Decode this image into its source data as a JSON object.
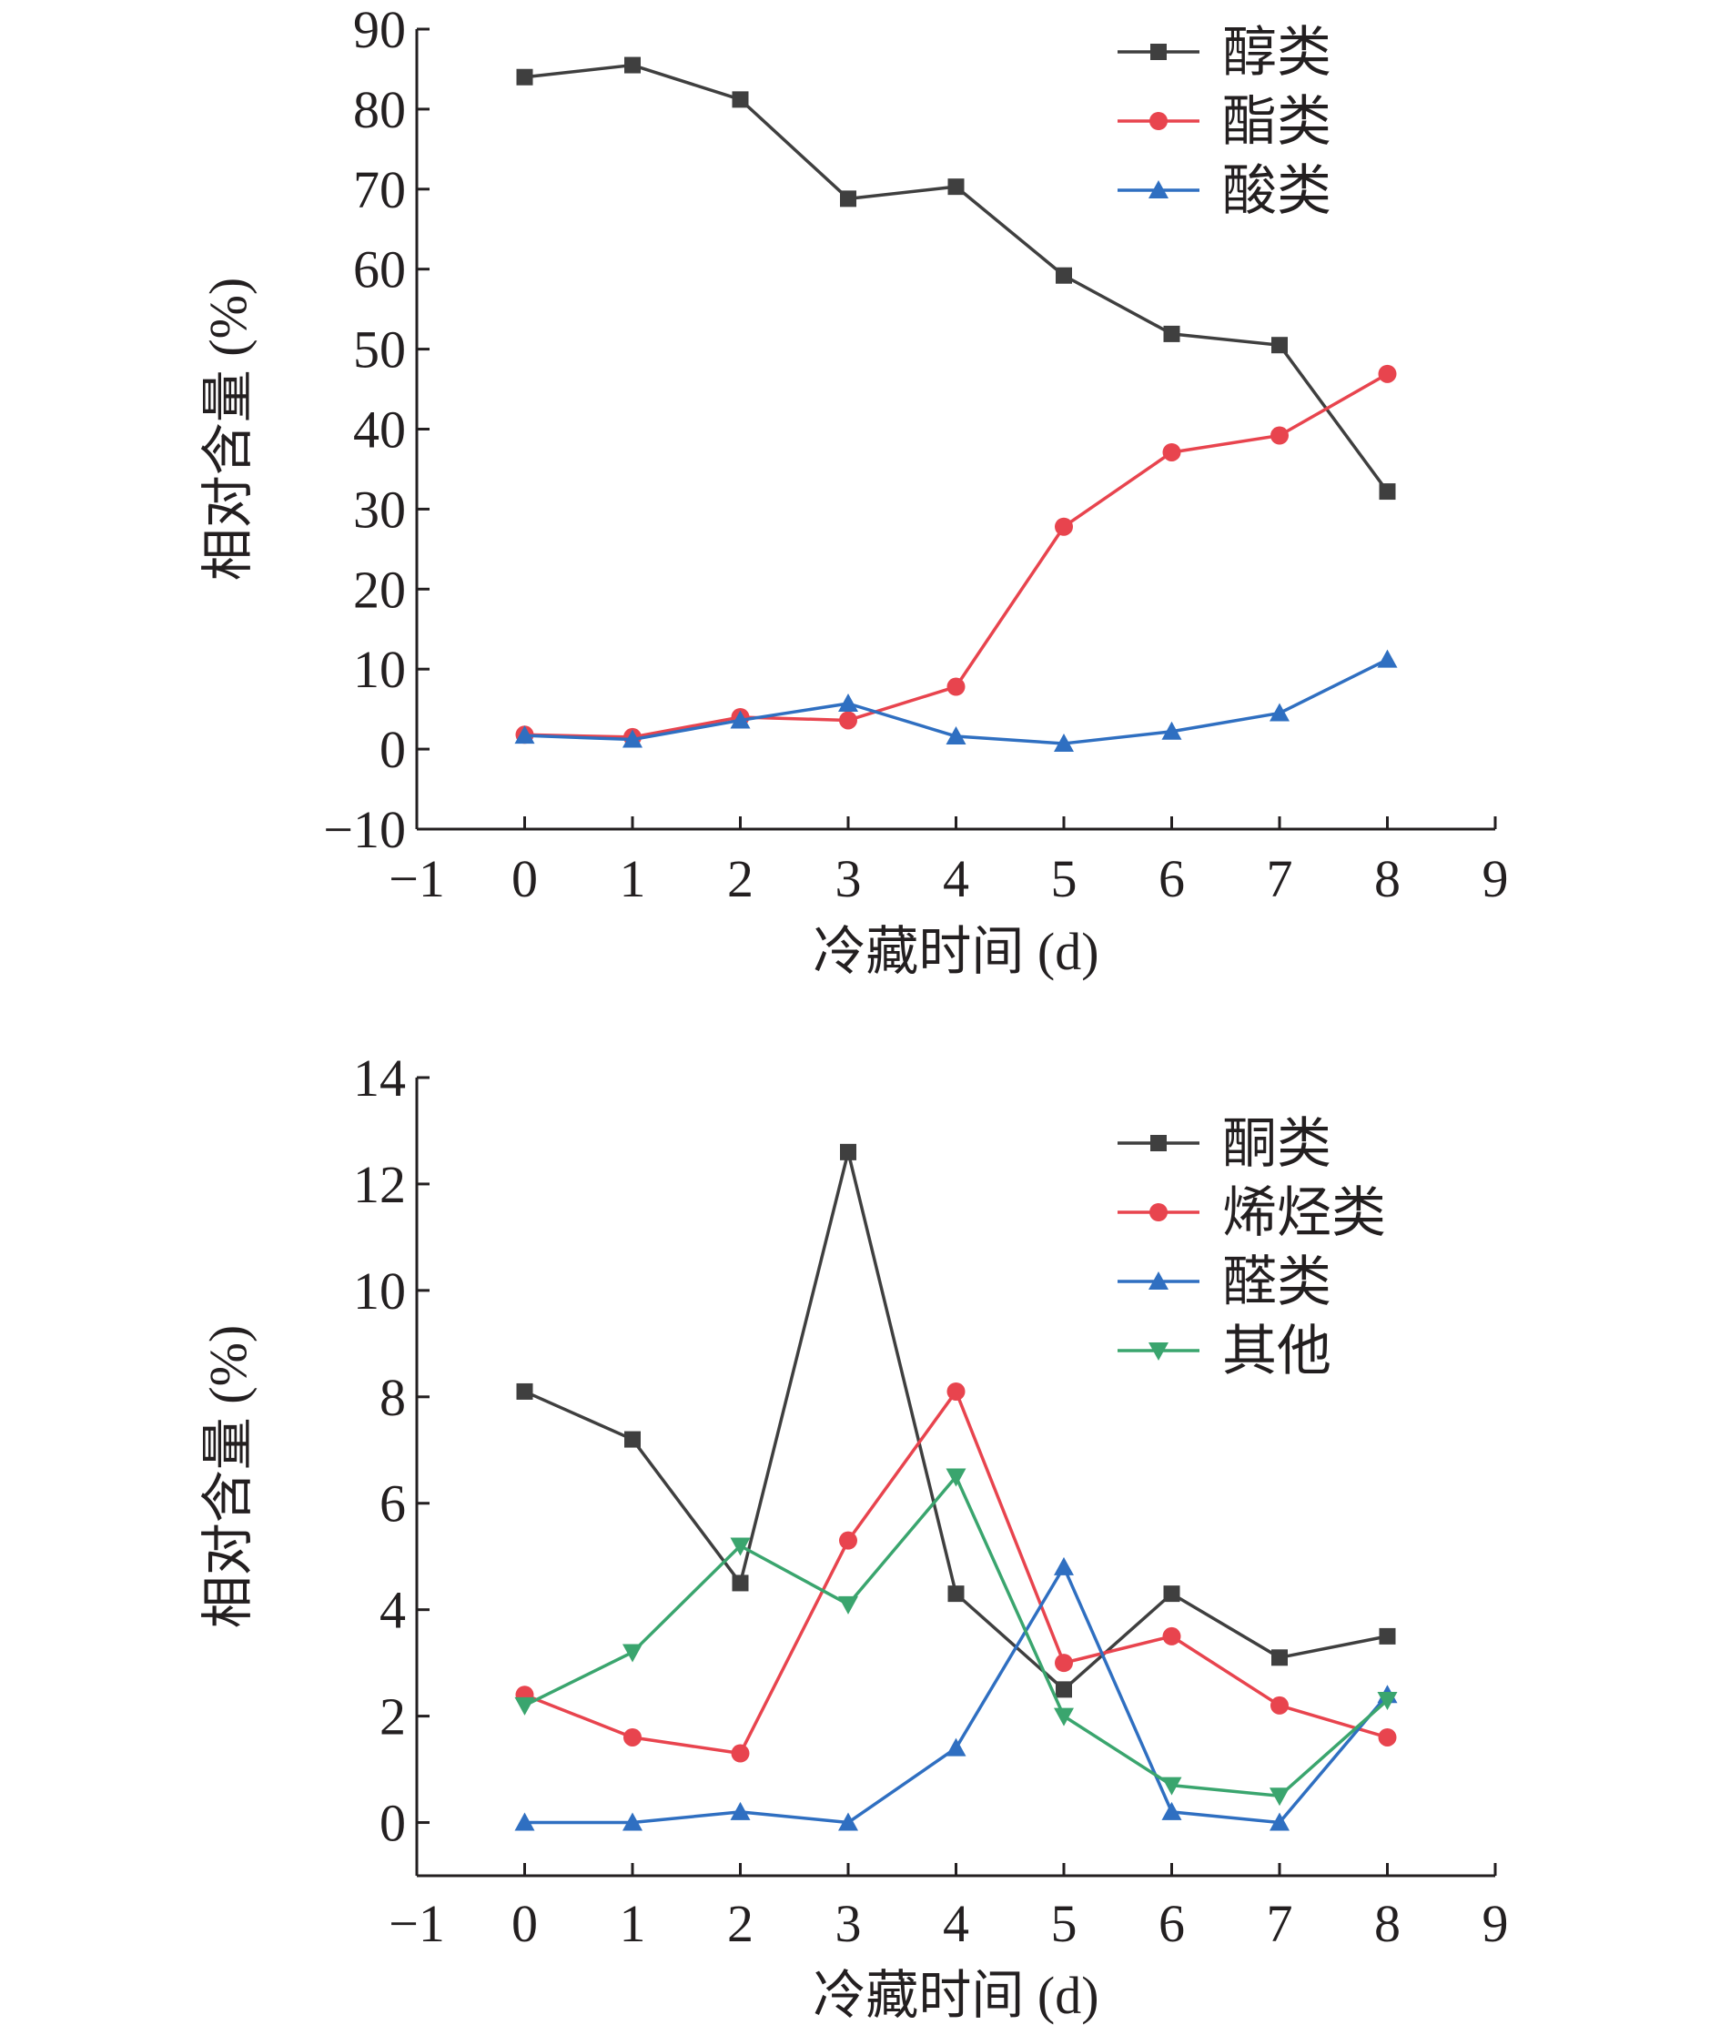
{
  "chart_data": [
    {
      "type": "line",
      "xlabel": "冷藏时间 (d)",
      "ylabel": "相对含量 (%)",
      "xlim": [
        -1,
        9
      ],
      "ylim": [
        -10,
        90
      ],
      "xticks": [
        -1,
        0,
        1,
        2,
        3,
        4,
        5,
        6,
        7,
        8,
        9
      ],
      "yticks": [
        -10,
        0,
        10,
        20,
        30,
        40,
        50,
        60,
        70,
        80,
        90
      ],
      "xtick_labels": [
        "−1",
        "0",
        "1",
        "2",
        "3",
        "4",
        "5",
        "6",
        "7",
        "8",
        "9"
      ],
      "ytick_labels": [
        "−10",
        "0",
        "10",
        "20",
        "30",
        "40",
        "50",
        "60",
        "70",
        "80",
        "90"
      ],
      "x": [
        0,
        1,
        2,
        3,
        4,
        5,
        6,
        7,
        8
      ],
      "legend_position": "top-right",
      "series": [
        {
          "name": "醇类",
          "color": "#3f3f3f",
          "marker": "square",
          "values": [
            84.0,
            85.5,
            81.2,
            68.8,
            70.3,
            59.2,
            51.9,
            50.5,
            32.2
          ]
        },
        {
          "name": "酯类",
          "color": "#e8444e",
          "marker": "circle",
          "values": [
            1.8,
            1.5,
            4.0,
            3.6,
            7.8,
            27.8,
            37.1,
            39.2,
            46.9
          ]
        },
        {
          "name": "酸类",
          "color": "#2f6fc1",
          "marker": "triangle-up",
          "values": [
            1.7,
            1.2,
            3.6,
            5.7,
            1.6,
            0.7,
            2.2,
            4.5,
            11.2
          ]
        }
      ]
    },
    {
      "type": "line",
      "xlabel": "冷藏时间 (d)",
      "ylabel": "相对含量 (%)",
      "xlim": [
        -1,
        9
      ],
      "ylim": [
        -1,
        14
      ],
      "xticks": [
        -1,
        0,
        1,
        2,
        3,
        4,
        5,
        6,
        7,
        8,
        9
      ],
      "yticks": [
        0,
        2,
        4,
        6,
        8,
        10,
        12,
        14
      ],
      "xtick_labels": [
        "−1",
        "0",
        "1",
        "2",
        "3",
        "4",
        "5",
        "6",
        "7",
        "8",
        "9"
      ],
      "ytick_labels": [
        "0",
        "2",
        "4",
        "6",
        "8",
        "10",
        "12",
        "14"
      ],
      "x": [
        0,
        1,
        2,
        3,
        4,
        5,
        6,
        7,
        8
      ],
      "legend_position": "top-right",
      "series": [
        {
          "name": "酮类",
          "color": "#3f3f3f",
          "marker": "square",
          "values": [
            8.1,
            7.2,
            4.5,
            12.6,
            4.3,
            2.5,
            4.3,
            3.1,
            3.5
          ]
        },
        {
          "name": "烯烃类",
          "color": "#e8444e",
          "marker": "circle",
          "values": [
            2.4,
            1.6,
            1.3,
            5.3,
            8.1,
            3.0,
            3.5,
            2.2,
            1.6
          ]
        },
        {
          "name": "醛类",
          "color": "#2f6fc1",
          "marker": "triangle-up",
          "values": [
            0.0,
            0.0,
            0.2,
            0.0,
            1.4,
            4.8,
            0.2,
            0.0,
            2.4
          ]
        },
        {
          "name": "其他",
          "color": "#3aa56e",
          "marker": "triangle-down",
          "values": [
            2.2,
            3.2,
            5.2,
            4.1,
            6.5,
            2.0,
            0.7,
            0.5,
            2.3
          ]
        }
      ]
    }
  ]
}
